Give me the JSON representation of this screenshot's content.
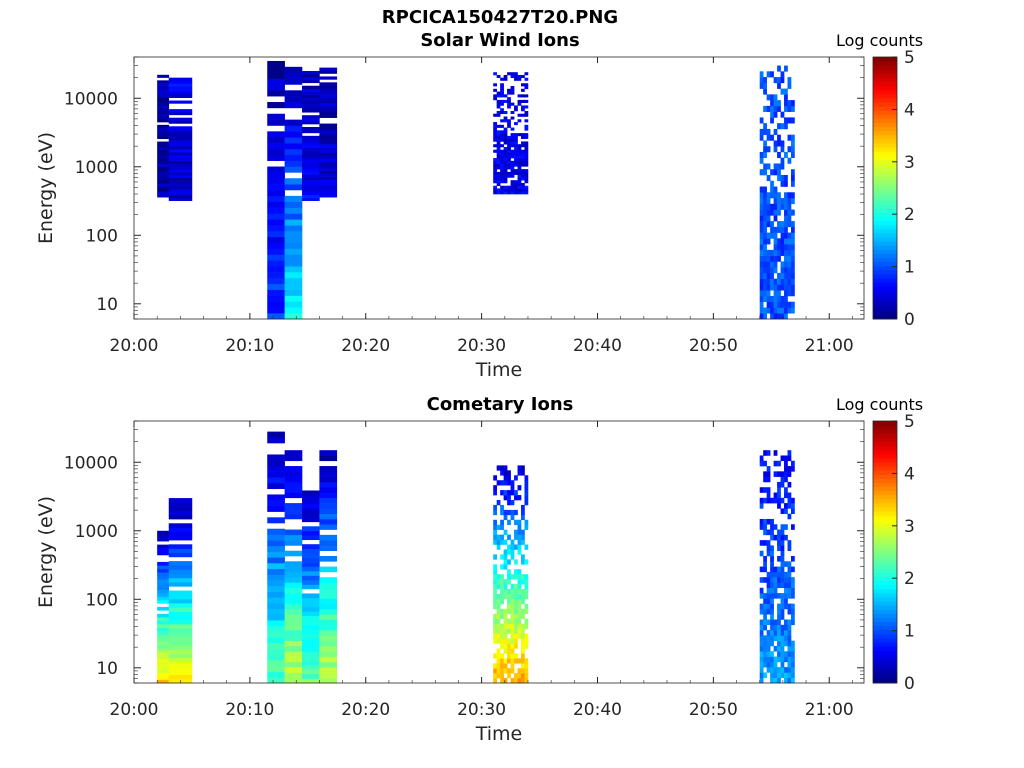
{
  "figure_title": "RPCICA150427T20.PNG",
  "colormap": [
    "#00007f",
    "#0000ff",
    "#0080ff",
    "#00ffff",
    "#80ff80",
    "#ffff00",
    "#ff8000",
    "#ff0000",
    "#7f0000"
  ],
  "chart_data": [
    {
      "type": "heatmap",
      "title": "Solar Wind Ions",
      "xlabel": "Time",
      "ylabel": "Energy (eV)",
      "xlim": [
        "20:00",
        "21:03"
      ],
      "ylim": [
        6,
        40000
      ],
      "y_scale": "log",
      "xticks": [
        "20:00",
        "20:10",
        "20:20",
        "20:30",
        "20:40",
        "20:50",
        "21:00"
      ],
      "yticks": [
        "10",
        "100",
        "1000",
        "10000"
      ],
      "colorbar": {
        "label": "Log counts",
        "range": [
          0,
          5
        ],
        "ticks": [
          "0",
          "1",
          "2",
          "3",
          "4",
          "5"
        ]
      },
      "blocks": [
        {
          "t_start": "20:02",
          "t_end": "20:03",
          "e_min": 360,
          "e_max": 22000,
          "log_counts": 0.2,
          "low_at": 0.2,
          "high_at": 0.2
        },
        {
          "t_start": "20:03",
          "t_end": "20:05",
          "e_min": 320,
          "e_max": 22000,
          "log_counts": 0.5,
          "low_at": 0.3,
          "high_at": 0.6
        },
        {
          "t_start": "20:11.5",
          "t_end": "20:13",
          "e_min": 6,
          "e_max": 35000,
          "log_counts": 0.6,
          "low_at": 0.9,
          "high_at": 0.2
        },
        {
          "t_start": "20:13",
          "t_end": "20:14.5",
          "e_min": 6,
          "e_max": 35000,
          "log_counts": 1.3,
          "low_at": 1.9,
          "high_at": 0.2
        },
        {
          "t_start": "20:14.5",
          "t_end": "20:16",
          "e_min": 320,
          "e_max": 25000,
          "log_counts": 0.6,
          "low_at": 0.6,
          "high_at": 0.3
        },
        {
          "t_start": "20:16",
          "t_end": "20:17.5",
          "e_min": 360,
          "e_max": 28000,
          "log_counts": 0.4,
          "low_at": 0.4,
          "high_at": 0.3
        },
        {
          "t_start": "20:31",
          "t_end": "20:34",
          "e_min": 400,
          "e_max": 24000,
          "log_counts": 0.5,
          "sparse": true,
          "low_at": 0.5,
          "high_at": 0.5
        },
        {
          "t_start": "20:54",
          "t_end": "20:57",
          "e_min": 6,
          "e_max": 30000,
          "log_counts": 1.0,
          "sparse": true,
          "low_at": 1.0,
          "high_at": 1.0
        }
      ]
    },
    {
      "type": "heatmap",
      "title": "Cometary Ions",
      "xlabel": "Time",
      "ylabel": "Energy (eV)",
      "xlim": [
        "20:00",
        "21:03"
      ],
      "ylim": [
        6,
        40000
      ],
      "y_scale": "log",
      "xticks": [
        "20:00",
        "20:10",
        "20:20",
        "20:30",
        "20:40",
        "20:50",
        "21:00"
      ],
      "yticks": [
        "10",
        "100",
        "1000",
        "10000"
      ],
      "colorbar": {
        "label": "Log counts",
        "range": [
          0,
          5
        ],
        "ticks": [
          "0",
          "1",
          "2",
          "3",
          "4",
          "5"
        ]
      },
      "blocks": [
        {
          "t_start": "20:02",
          "t_end": "20:03",
          "e_min": 6,
          "e_max": 1000,
          "log_counts": 2.5,
          "low_at": 3.3,
          "high_at": 0.3
        },
        {
          "t_start": "20:03",
          "t_end": "20:05",
          "e_min": 6,
          "e_max": 3000,
          "log_counts": 2.5,
          "low_at": 3.1,
          "high_at": 0.2
        },
        {
          "t_start": "20:11.5",
          "t_end": "20:13",
          "e_min": 6,
          "e_max": 28000,
          "log_counts": 2.0,
          "low_at": 2.3,
          "high_at": 0.2
        },
        {
          "t_start": "20:13",
          "t_end": "20:14.5",
          "e_min": 6,
          "e_max": 15000,
          "log_counts": 2.7,
          "low_at": 2.9,
          "high_at": 0.3
        },
        {
          "t_start": "20:14.5",
          "t_end": "20:16",
          "e_min": 6,
          "e_max": 4500,
          "log_counts": 2.2,
          "low_at": 2.4,
          "high_at": 0.3
        },
        {
          "t_start": "20:16",
          "t_end": "20:17.5",
          "e_min": 6,
          "e_max": 15000,
          "log_counts": 2.6,
          "low_at": 2.9,
          "high_at": 0.2
        },
        {
          "t_start": "20:31",
          "t_end": "20:34",
          "e_min": 6,
          "e_max": 9000,
          "log_counts": 2.8,
          "sparse": true,
          "low_at": 3.6,
          "high_at": 0.4
        },
        {
          "t_start": "20:54",
          "t_end": "20:57",
          "e_min": 6,
          "e_max": 15000,
          "log_counts": 1.5,
          "sparse": true,
          "low_at": 1.4,
          "high_at": 0.6
        }
      ]
    }
  ]
}
